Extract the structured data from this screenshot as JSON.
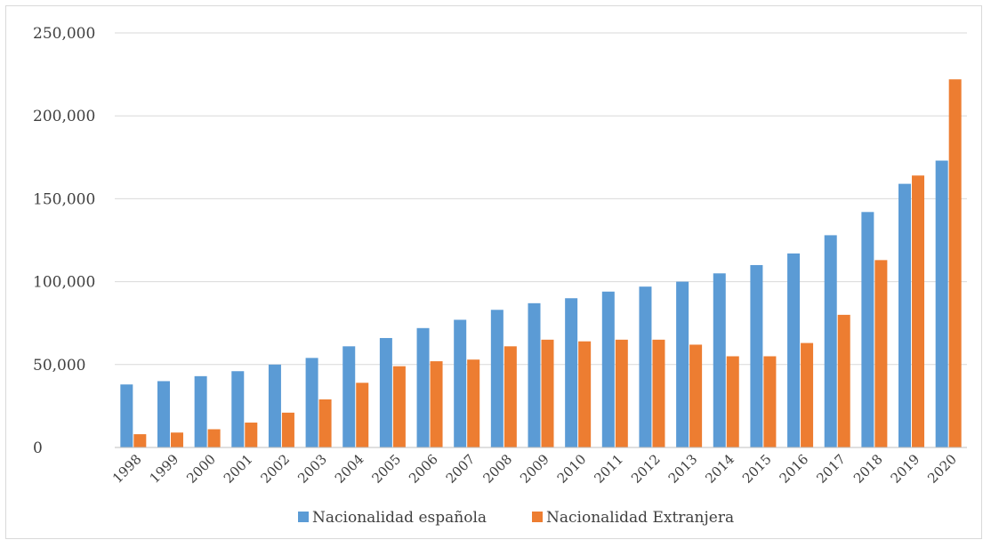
{
  "chart_data": {
    "type": "bar",
    "categories": [
      "1998",
      "1999",
      "2000",
      "2001",
      "2002",
      "2003",
      "2004",
      "2005",
      "2006",
      "2007",
      "2008",
      "2009",
      "2010",
      "2011",
      "2012",
      "2013",
      "2014",
      "2015",
      "2016",
      "2017",
      "2018",
      "2019",
      "2020"
    ],
    "series": [
      {
        "name": "Nacionalidad española",
        "color": "#5b9bd5",
        "values": [
          38000,
          40000,
          43000,
          46000,
          50000,
          54000,
          61000,
          66000,
          72000,
          77000,
          83000,
          87000,
          90000,
          94000,
          97000,
          100000,
          105000,
          110000,
          117000,
          128000,
          142000,
          159000,
          173000
        ]
      },
      {
        "name": "Nacionalidad Extranjera",
        "color": "#ed7d31",
        "values": [
          8000,
          9000,
          11000,
          15000,
          21000,
          29000,
          39000,
          49000,
          52000,
          53000,
          61000,
          65000,
          64000,
          65000,
          65000,
          62000,
          55000,
          55000,
          63000,
          80000,
          113000,
          164000,
          222000
        ]
      }
    ],
    "yticks": [
      0,
      50000,
      100000,
      150000,
      200000,
      250000
    ],
    "ytick_labels": [
      "0",
      "50,000",
      "100,000",
      "150,000",
      "200,000",
      "250,000"
    ],
    "ylim": [
      0,
      250000
    ],
    "grid": true,
    "legend_position": "bottom",
    "title": "",
    "xlabel": "",
    "ylabel": ""
  }
}
